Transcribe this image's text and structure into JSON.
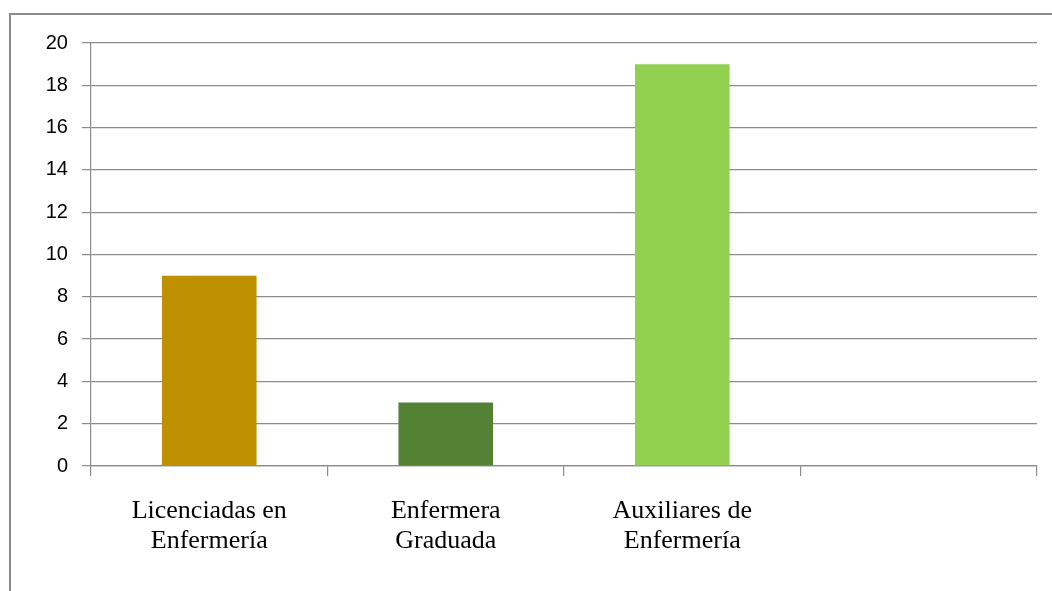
{
  "chart_data": {
    "type": "bar",
    "categories": [
      "Licenciadas en Enfermería",
      "Enfermera Graduada",
      "Auxiliares de Enfermería",
      null
    ],
    "values": [
      9,
      3,
      19,
      null
    ],
    "colors": [
      "#bf9000",
      "#548235",
      "#92d050",
      null
    ],
    "ylim": [
      0,
      20
    ],
    "yticks": [
      0,
      2,
      4,
      6,
      8,
      10,
      12,
      14,
      16,
      18,
      20
    ],
    "grid": "y",
    "legend": false
  }
}
